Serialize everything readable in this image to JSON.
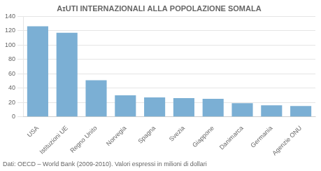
{
  "chart_data": {
    "type": "bar",
    "title": "AɪUTI INTERNAZIONALI ALLA POPOLAZIONE SOMALA",
    "categories": [
      "USA",
      "Istituzioni UE",
      "Regno Unito",
      "Norvegia",
      "Spagna",
      "Svezia",
      "Giappone",
      "Danimarca",
      "Germania",
      "Agenzie ONU"
    ],
    "values": [
      126,
      117,
      51,
      30,
      27,
      26,
      25,
      19,
      16,
      15
    ],
    "color": "#7bafd4",
    "ylim": [
      0,
      140
    ],
    "yticks": [
      0,
      20,
      40,
      60,
      80,
      100,
      120,
      140
    ],
    "grid": true,
    "annotations": [
      "Dati: OECD – World Bank (2009-2010). Valori espressi in milioni di dollari"
    ]
  }
}
